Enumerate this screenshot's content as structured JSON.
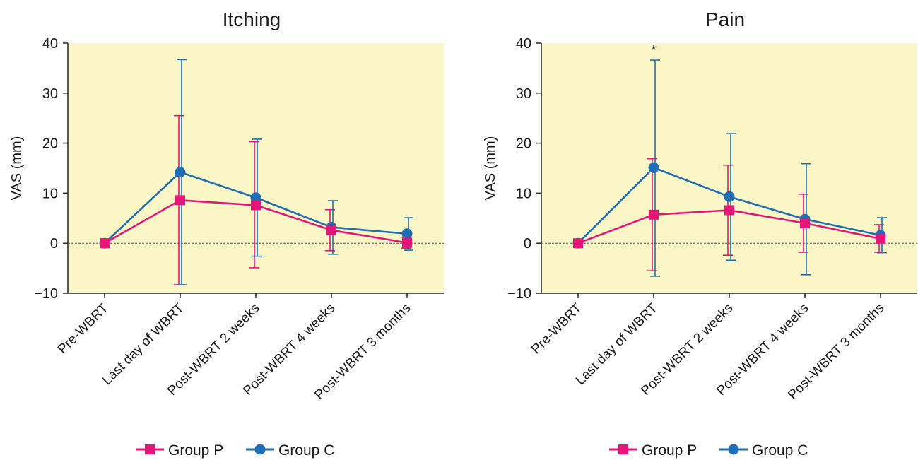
{
  "chart_data": [
    {
      "type": "line",
      "title": "Itching",
      "ylabel": "VAS (mm)",
      "xlabel": "",
      "ylim": [
        -10,
        40
      ],
      "yticks": [
        -10,
        0,
        10,
        20,
        30,
        40
      ],
      "ytick_labels": [
        "−10",
        "0",
        "10",
        "20",
        "30",
        "40"
      ],
      "categories": [
        "Pre-WBRT",
        "Last day of WBRT",
        "Post-WBRT 2 weeks",
        "Post-WBRT 4 weeks",
        "Post-WBRT 3 months"
      ],
      "reference_line": 0,
      "grid": false,
      "legend_position": "bottom",
      "annotations": [],
      "series": [
        {
          "name": "Group P",
          "color": "#e5157a",
          "marker": "square",
          "values": [
            0,
            8.6,
            7.6,
            2.6,
            0.1
          ],
          "err_low": [
            0,
            -8.3,
            -4.9,
            -1.5,
            -1.0
          ],
          "err_high": [
            0,
            25.5,
            20.3,
            6.7,
            1.2
          ]
        },
        {
          "name": "Group C",
          "color": "#1f6db3",
          "marker": "circle",
          "values": [
            0,
            14.2,
            9.1,
            3.2,
            1.9
          ],
          "err_low": [
            0,
            -8.3,
            -2.6,
            -2.2,
            -1.4
          ],
          "err_high": [
            0,
            36.7,
            20.8,
            8.5,
            5.1
          ]
        }
      ]
    },
    {
      "type": "line",
      "title": "Pain",
      "ylabel": "VAS (mm)",
      "xlabel": "",
      "ylim": [
        -10,
        40
      ],
      "yticks": [
        -10,
        0,
        10,
        20,
        30,
        40
      ],
      "ytick_labels": [
        "−10",
        "0",
        "10",
        "20",
        "30",
        "40"
      ],
      "categories": [
        "Pre-WBRT",
        "Last day of WBRT",
        "Post-WBRT 2 weeks",
        "Post-WBRT 4 weeks",
        "Post-WBRT 3 months"
      ],
      "reference_line": 0,
      "grid": false,
      "legend_position": "bottom",
      "annotations": [
        {
          "text": "*",
          "category_index": 1,
          "y": 38.5
        }
      ],
      "series": [
        {
          "name": "Group P",
          "color": "#e5157a",
          "marker": "square",
          "values": [
            0,
            5.7,
            6.6,
            4.0,
            0.9
          ],
          "err_low": [
            0,
            -5.5,
            -2.4,
            -1.8,
            -1.8
          ],
          "err_high": [
            0,
            16.9,
            15.6,
            9.8,
            3.7
          ]
        },
        {
          "name": "Group C",
          "color": "#1f6db3",
          "marker": "circle",
          "values": [
            0,
            15.1,
            9.3,
            4.8,
            1.6
          ],
          "err_low": [
            0,
            -6.6,
            -3.4,
            -6.3,
            -1.9
          ],
          "err_high": [
            0,
            36.6,
            21.9,
            15.9,
            5.1
          ]
        }
      ]
    }
  ]
}
